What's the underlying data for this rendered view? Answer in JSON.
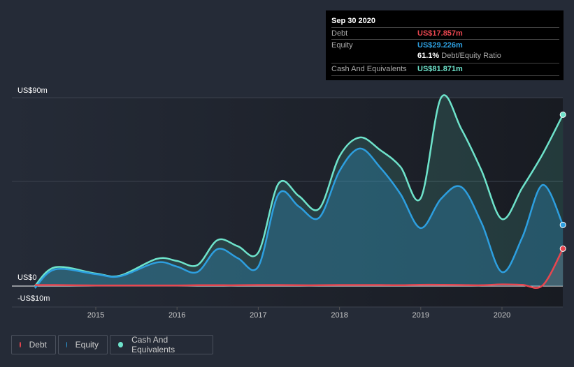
{
  "tooltip": {
    "date": "Sep 30 2020",
    "debt_label": "Debt",
    "debt_value": "US$17.857m",
    "equity_label": "Equity",
    "equity_value": "US$29.226m",
    "ratio_value": "61.1%",
    "ratio_label": "Debt/Equity Ratio",
    "cash_label": "Cash And Equivalents",
    "cash_value": "US$81.871m"
  },
  "colors": {
    "debt": "#e8464f",
    "equity": "#2d9fe0",
    "cash": "#6ee3cb"
  },
  "chart_data": {
    "type": "area",
    "title": "",
    "xlabel": "",
    "ylabel": "",
    "ylim": [
      -10,
      90
    ],
    "xlim": [
      2014.1,
      2020.75
    ],
    "y_tick_labels": [
      "US$90m",
      "US$0",
      "-US$10m"
    ],
    "y_ticks": [
      90,
      0,
      -10
    ],
    "x_tick_labels": [
      "2015",
      "2016",
      "2017",
      "2018",
      "2019",
      "2020"
    ],
    "x_ticks": [
      2015,
      2016,
      2017,
      2018,
      2019,
      2020
    ],
    "x": [
      2014.25,
      2014.5,
      2015.0,
      2015.3,
      2015.75,
      2016.0,
      2016.25,
      2016.5,
      2016.75,
      2017.0,
      2017.25,
      2017.5,
      2017.75,
      2018.0,
      2018.25,
      2018.5,
      2018.75,
      2019.0,
      2019.25,
      2019.5,
      2019.75,
      2020.0,
      2020.25,
      2020.5,
      2020.75
    ],
    "series": [
      {
        "name": "Debt",
        "values": [
          0.5,
          0.5,
          0.3,
          0.3,
          0.3,
          0.3,
          0.4,
          0.4,
          0.4,
          0.5,
          0.5,
          0.4,
          0.4,
          0.5,
          0.5,
          0.5,
          0.4,
          0.6,
          0.6,
          0.5,
          0.4,
          0.8,
          0.6,
          0.3,
          17.857
        ]
      },
      {
        "name": "Equity",
        "values": [
          -1,
          8,
          5.7,
          4.7,
          11.3,
          9.3,
          6.7,
          17.7,
          13.3,
          9.3,
          44,
          38,
          32.7,
          55,
          65.7,
          56.7,
          44,
          27.7,
          41.7,
          47.3,
          30,
          6.7,
          23.3,
          48.3,
          29.226
        ]
      },
      {
        "name": "Cash And Equivalents",
        "values": [
          0,
          9,
          6,
          5,
          13,
          12,
          10,
          22,
          19,
          16,
          49,
          43,
          37,
          62,
          71,
          65,
          57,
          42,
          90,
          75,
          55,
          32,
          47,
          63,
          81.871
        ]
      }
    ],
    "legend": [
      "Debt",
      "Equity",
      "Cash And Equivalents"
    ],
    "legend_position": "bottom-left",
    "grid": true
  }
}
